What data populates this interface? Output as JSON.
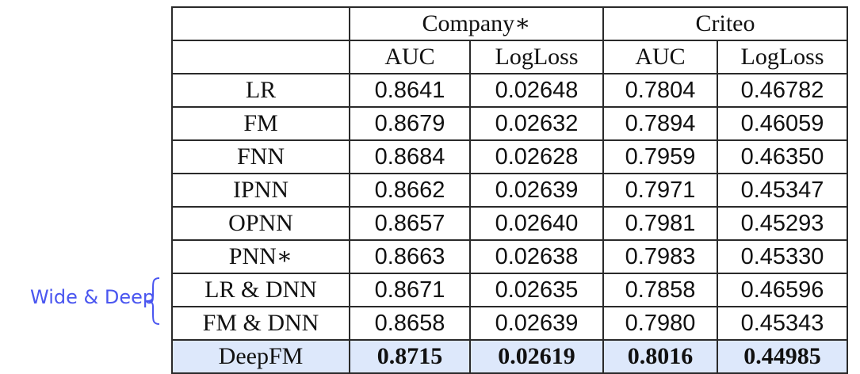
{
  "annotation": {
    "label": "Wide & Deep",
    "color": "#4a56f0"
  },
  "table": {
    "groups": [
      "Company∗",
      "Criteo"
    ],
    "metrics": [
      "AUC",
      "LogLoss",
      "AUC",
      "LogLoss"
    ],
    "rows": [
      {
        "model": "LR",
        "values": [
          "0.8641",
          "0.02648",
          "0.7804",
          "0.46782"
        ]
      },
      {
        "model": "FM",
        "values": [
          "0.8679",
          "0.02632",
          "0.7894",
          "0.46059"
        ]
      },
      {
        "model": "FNN",
        "values": [
          "0.8684",
          "0.02628",
          "0.7959",
          "0.46350"
        ]
      },
      {
        "model": "IPNN",
        "values": [
          "0.8662",
          "0.02639",
          "0.7971",
          "0.45347"
        ]
      },
      {
        "model": "OPNN",
        "values": [
          "0.8657",
          "0.02640",
          "0.7981",
          "0.45293"
        ]
      },
      {
        "model": "PNN∗",
        "values": [
          "0.8663",
          "0.02638",
          "0.7983",
          "0.45330"
        ]
      },
      {
        "model": "LR & DNN",
        "values": [
          "0.8671",
          "0.02635",
          "0.7858",
          "0.46596"
        ]
      },
      {
        "model": "FM & DNN",
        "values": [
          "0.8658",
          "0.02639",
          "0.7980",
          "0.45343"
        ]
      },
      {
        "model": "DeepFM",
        "values": [
          "0.8715",
          "0.02619",
          "0.8016",
          "0.44985"
        ],
        "highlight": true
      }
    ],
    "highlight_color": "#dde8fb"
  }
}
